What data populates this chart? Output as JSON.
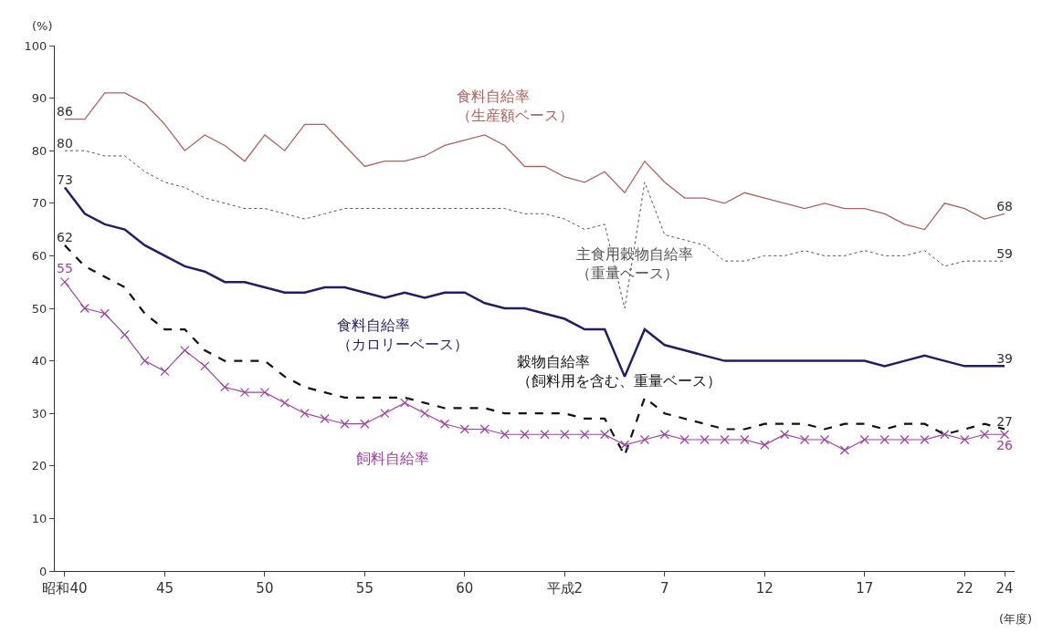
{
  "chart_data": {
    "type": "line",
    "ylabel": "(%)",
    "xlabel": "(年度)",
    "categories": [
      "昭和40",
      null,
      null,
      null,
      null,
      "45",
      null,
      null,
      null,
      null,
      "50",
      null,
      null,
      null,
      null,
      "55",
      null,
      null,
      null,
      null,
      "60",
      null,
      null,
      null,
      null,
      "平成2",
      null,
      null,
      null,
      null,
      "7",
      null,
      null,
      null,
      null,
      "12",
      null,
      null,
      null,
      null,
      "17",
      null,
      null,
      null,
      null,
      "22",
      null,
      "24"
    ],
    "ylim": [
      0,
      100
    ],
    "yticks": [
      0,
      10,
      20,
      30,
      40,
      50,
      60,
      70,
      80,
      90,
      100
    ],
    "grid": false,
    "legend": false,
    "series": [
      {
        "name": "食料自給率（生産額ベース）",
        "color": "#b0605a",
        "line_style": "solid",
        "marker": "none",
        "values": [
          86,
          86,
          91,
          91,
          89,
          85,
          80,
          83,
          81,
          78,
          83,
          80,
          85,
          85,
          81,
          77,
          78,
          78,
          79,
          81,
          82,
          83,
          81,
          77,
          77,
          75,
          74,
          76,
          72,
          78,
          74,
          71,
          71,
          70,
          72,
          71,
          70,
          69,
          70,
          69,
          69,
          68,
          66,
          65,
          70,
          69,
          67,
          68
        ],
        "value_labels": [
          "86",
          null,
          null,
          null,
          null,
          null,
          null,
          null,
          null,
          null,
          null,
          null,
          null,
          null,
          null,
          null,
          null,
          null,
          null,
          null,
          null,
          null,
          null,
          null,
          null,
          null,
          null,
          null,
          null,
          null,
          null,
          null,
          null,
          null,
          null,
          null,
          null,
          null,
          null,
          null,
          null,
          null,
          null,
          null,
          null,
          null,
          null,
          "68"
        ]
      },
      {
        "name": "主食用穀物自給率（重量ベース）",
        "color": "#555555",
        "line_style": "dotted",
        "marker": "none",
        "values": [
          80,
          80,
          79,
          79,
          76,
          74,
          73,
          71,
          70,
          69,
          69,
          68,
          67,
          68,
          69,
          69,
          69,
          69,
          69,
          69,
          69,
          69,
          69,
          68,
          68,
          67,
          65,
          66,
          50,
          74,
          64,
          63,
          62,
          59,
          59,
          60,
          60,
          61,
          60,
          60,
          61,
          60,
          60,
          61,
          58,
          59,
          59,
          59
        ],
        "value_labels": [
          "80",
          null,
          null,
          null,
          null,
          null,
          null,
          null,
          null,
          null,
          null,
          null,
          null,
          null,
          null,
          null,
          null,
          null,
          null,
          null,
          null,
          null,
          null,
          null,
          null,
          null,
          null,
          null,
          null,
          null,
          null,
          null,
          null,
          null,
          null,
          null,
          null,
          null,
          null,
          null,
          null,
          null,
          null,
          null,
          null,
          null,
          null,
          "59"
        ]
      },
      {
        "name": "食料自給率（カロリーベース）",
        "color": "#1f1f66",
        "line_style": "solid",
        "marker": "none",
        "values": [
          73,
          68,
          66,
          65,
          62,
          60,
          58,
          57,
          55,
          55,
          54,
          53,
          53,
          54,
          54,
          53,
          52,
          53,
          52,
          53,
          53,
          51,
          50,
          50,
          49,
          48,
          46,
          46,
          37,
          46,
          43,
          42,
          41,
          40,
          40,
          40,
          40,
          40,
          40,
          40,
          40,
          39,
          40,
          41,
          40,
          39,
          39,
          39
        ],
        "value_labels": [
          "73",
          null,
          null,
          null,
          null,
          null,
          null,
          null,
          null,
          null,
          null,
          null,
          null,
          null,
          null,
          null,
          null,
          null,
          null,
          null,
          null,
          null,
          null,
          null,
          null,
          null,
          null,
          null,
          null,
          null,
          null,
          null,
          null,
          null,
          null,
          null,
          null,
          null,
          null,
          null,
          null,
          null,
          null,
          null,
          null,
          null,
          null,
          "39"
        ]
      },
      {
        "name": "穀物自給率（飼料用を含む、重量ベース）",
        "color": "#111111",
        "line_style": "dashed",
        "marker": "none",
        "values": [
          62,
          58,
          56,
          54,
          49,
          46,
          46,
          42,
          40,
          40,
          40,
          37,
          35,
          34,
          33,
          33,
          33,
          33,
          32,
          31,
          31,
          31,
          30,
          30,
          30,
          30,
          29,
          29,
          22,
          33,
          30,
          29,
          28,
          27,
          27,
          28,
          28,
          28,
          27,
          28,
          28,
          27,
          28,
          28,
          26,
          27,
          28,
          27
        ],
        "value_labels": [
          "62",
          null,
          null,
          null,
          null,
          null,
          null,
          null,
          null,
          null,
          null,
          null,
          null,
          null,
          null,
          null,
          null,
          null,
          null,
          null,
          null,
          null,
          null,
          null,
          null,
          null,
          null,
          null,
          null,
          null,
          null,
          null,
          null,
          null,
          null,
          null,
          null,
          null,
          null,
          null,
          null,
          null,
          null,
          null,
          null,
          null,
          null,
          "27"
        ]
      },
      {
        "name": "飼料自給率",
        "color": "#a040a0",
        "line_style": "solid",
        "marker": "cross",
        "values": [
          55,
          50,
          49,
          45,
          40,
          38,
          42,
          39,
          35,
          34,
          34,
          32,
          30,
          29,
          28,
          28,
          30,
          32,
          30,
          28,
          27,
          27,
          26,
          26,
          26,
          26,
          26,
          26,
          24,
          25,
          26,
          25,
          25,
          25,
          25,
          24,
          26,
          25,
          25,
          23,
          25,
          25,
          25,
          25,
          26,
          25,
          26,
          26
        ],
        "value_labels": [
          "55",
          null,
          null,
          null,
          null,
          null,
          null,
          null,
          null,
          null,
          null,
          null,
          null,
          null,
          null,
          null,
          null,
          null,
          null,
          null,
          null,
          null,
          null,
          null,
          null,
          null,
          null,
          null,
          null,
          null,
          null,
          null,
          null,
          null,
          null,
          null,
          null,
          null,
          null,
          null,
          null,
          null,
          null,
          null,
          null,
          null,
          null,
          "26"
        ]
      }
    ]
  }
}
